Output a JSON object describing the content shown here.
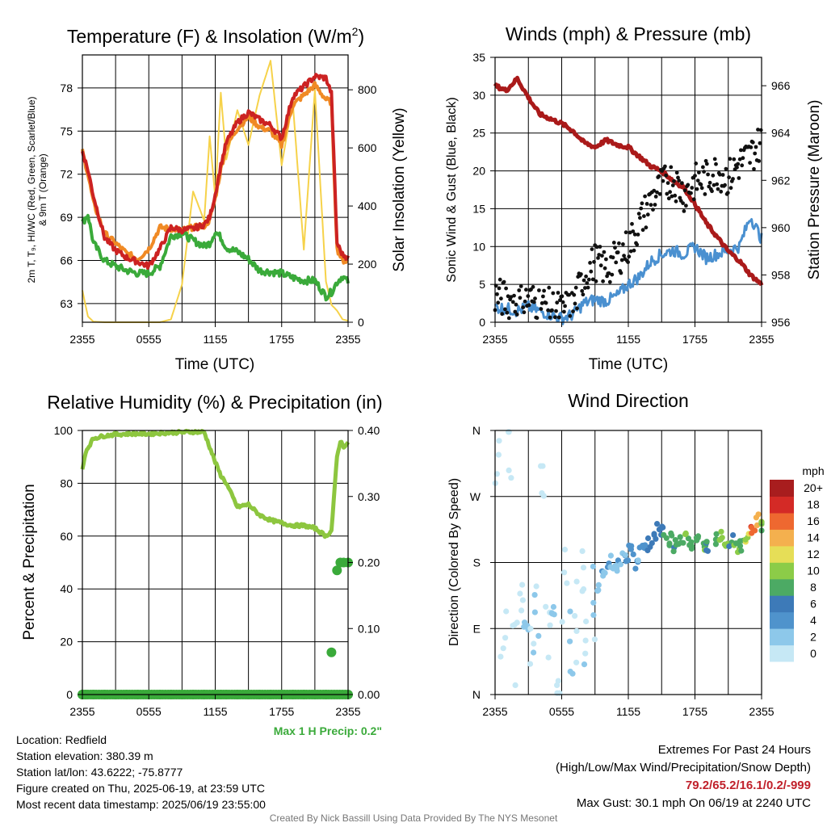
{
  "chart_data": [
    {
      "id": "temperature",
      "type": "line",
      "title": "Temperature (F) & Insolation (W/m²)",
      "title_main": "Temperature (F) & Insolation (W/m",
      "title_sup": "2",
      "title_end": ")",
      "xlabel": "Time (UTC)",
      "ylabel_left_line1": "2m T, T₉, HI/WC (Red, Green, Scarlet/Blue)",
      "ylabel_left_line2": "& 9m T (Orange)",
      "ylabel_right": "Solar Insolation (Yellow)",
      "x_ticks": [
        "2355",
        "0555",
        "1155",
        "1755",
        "2355"
      ],
      "ylim_left": [
        61.7,
        80.3
      ],
      "yticks_left": [
        63,
        66,
        69,
        72,
        75,
        78
      ],
      "ylim_right": [
        0,
        920
      ],
      "yticks_right": [
        0,
        200,
        400,
        600,
        800
      ],
      "grid": true,
      "x_hours": [
        0,
        0.5,
        1,
        2,
        3,
        4,
        5,
        6,
        7,
        8,
        9,
        10,
        11,
        11.5,
        12,
        12.5,
        13,
        14,
        15,
        16,
        17,
        18,
        19,
        20,
        21,
        22,
        22.5,
        23,
        23.5,
        24
      ],
      "series": [
        {
          "key": "temp_2m",
          "color": "#cc2222",
          "axis": "left",
          "values": [
            73.6,
            72.3,
            70.5,
            67.6,
            66.7,
            66.2,
            65.9,
            65.6,
            66.8,
            68.3,
            68.1,
            68.2,
            68.5,
            69.0,
            70.6,
            72.6,
            74.2,
            75.6,
            76.3,
            75.8,
            75.4,
            74.5,
            77.4,
            78.1,
            78.8,
            78.7,
            77.6,
            67.2,
            66.4,
            66.2
          ]
        },
        {
          "key": "dewpoint",
          "color": "#3aaa3a",
          "axis": "left",
          "values": [
            68.6,
            69.2,
            67.2,
            66.0,
            65.6,
            65.3,
            65.1,
            65.1,
            65.6,
            67.7,
            67.9,
            67.4,
            67.0,
            67.2,
            68.0,
            67.6,
            66.9,
            66.6,
            66.1,
            65.3,
            65.2,
            65.1,
            64.8,
            64.6,
            64.6,
            63.5,
            63.8,
            64.5,
            64.9,
            64.5
          ]
        },
        {
          "key": "temp_9m",
          "color": "#f08a25",
          "axis": "left",
          "values": [
            73.6,
            72.0,
            70.0,
            67.9,
            67.2,
            66.5,
            66.1,
            66.8,
            68.3,
            68.2,
            68.1,
            68.3,
            68.4,
            68.8,
            70.3,
            72.3,
            73.9,
            75.2,
            76.0,
            75.3,
            75.0,
            74.0,
            76.8,
            77.5,
            78.2,
            77.2,
            77.0,
            66.8,
            66.0,
            65.9
          ]
        },
        {
          "key": "insolation",
          "color": "#f6d24a",
          "axis": "right",
          "values": [
            110,
            20,
            2,
            0,
            0,
            0,
            0,
            0,
            0,
            10,
            130,
            450,
            350,
            640,
            430,
            790,
            560,
            730,
            610,
            780,
            900,
            540,
            760,
            250,
            800,
            140,
            60,
            40,
            10,
            5
          ]
        }
      ]
    },
    {
      "id": "winds",
      "type": "scatter",
      "title": "Winds (mph) & Pressure (mb)",
      "xlabel": "Time (UTC)",
      "ylabel_left": "Sonic Wind & Gust (Blue, Black)",
      "ylabel_right": "Station Pressure (Maroon)",
      "x_ticks": [
        "2355",
        "0555",
        "1155",
        "1755",
        "2355"
      ],
      "ylim_left": [
        0,
        35
      ],
      "yticks_left": [
        0,
        5,
        10,
        15,
        20,
        25,
        30,
        35
      ],
      "ylim_right": [
        956,
        967.2
      ],
      "yticks_right": [
        956,
        958,
        960,
        962,
        964,
        966
      ],
      "grid": true,
      "x_hours": [
        0,
        1,
        2,
        3,
        4,
        5,
        6,
        7,
        8,
        9,
        10,
        11,
        12,
        13,
        14,
        15,
        16,
        17,
        18,
        19,
        20,
        21,
        22,
        23,
        24
      ],
      "series": [
        {
          "key": "wind",
          "color": "#4a90d0",
          "axis": "left",
          "values": [
            2,
            1.8,
            1.5,
            2,
            1.5,
            1,
            0.5,
            1,
            2.5,
            3,
            2.8,
            3.5,
            5,
            6,
            8,
            9,
            9.5,
            9,
            10,
            8.5,
            9,
            9.5,
            10,
            14,
            11
          ]
        },
        {
          "key": "gust",
          "color": "#111111",
          "axis": "left",
          "values": [
            3.5,
            3,
            2.5,
            3,
            2.5,
            2,
            1.5,
            2,
            6,
            8,
            7,
            8.5,
            10,
            13,
            16,
            18,
            19,
            17,
            18.5,
            19,
            20,
            19,
            21,
            22,
            24
          ]
        },
        {
          "key": "pressure",
          "color": "#aa1a1a",
          "axis": "right",
          "values": [
            966,
            965.8,
            966.3,
            965.5,
            964.8,
            964.6,
            964.4,
            964.1,
            963.6,
            963.4,
            963.7,
            963.5,
            963.4,
            963.0,
            962.6,
            962.4,
            962.0,
            961.7,
            961.0,
            960.2,
            959.6,
            959.0,
            958.6,
            958.0,
            957.6
          ]
        }
      ]
    },
    {
      "id": "humidity",
      "type": "line",
      "title": "Relative Humidity (%) & Precipitation (in)",
      "ylabel": "Percent & Precipitation",
      "x_ticks": [
        "2355",
        "0555",
        "1155",
        "1755",
        "2355"
      ],
      "ylim_left": [
        0,
        100
      ],
      "yticks_left": [
        0,
        20,
        40,
        60,
        80,
        100
      ],
      "ylim_right": [
        0,
        0.4
      ],
      "yticks_right": [
        "0.00",
        "0.10",
        "0.20",
        "0.30",
        "0.40"
      ],
      "grid": true,
      "x_hours": [
        0,
        0.3,
        1,
        2,
        3,
        4,
        5,
        6,
        7,
        8,
        9,
        10,
        11,
        12,
        12.5,
        13,
        14,
        15,
        16,
        17,
        18,
        19,
        20,
        21,
        22,
        22.5,
        23,
        23.3,
        23.6,
        24
      ],
      "series": [
        {
          "key": "rh",
          "color": "#8dc63f",
          "axis": "left",
          "values": [
            85,
            92,
            97,
            98,
            98.5,
            98.7,
            98.8,
            98.7,
            99,
            99.2,
            99.3,
            99.5,
            99.4,
            88,
            83,
            80,
            71,
            72,
            68,
            66,
            65,
            64,
            64,
            63,
            60,
            62,
            90,
            96,
            94,
            95
          ]
        },
        {
          "key": "precip",
          "color": "#3aaa3a",
          "axis": "right",
          "marker": "dot",
          "values": [
            0,
            0,
            0,
            0,
            0,
            0,
            0,
            0,
            0,
            0,
            0,
            0,
            0,
            0,
            0,
            0,
            0,
            0,
            0,
            0,
            0,
            0,
            0,
            0,
            0,
            0.064,
            0.188,
            0.2,
            0.2,
            0.2
          ]
        }
      ],
      "max_precip_label": "Max 1 H Precip: 0.2\""
    },
    {
      "id": "direction",
      "type": "scatter",
      "title": "Wind Direction",
      "ylabel": "Direction (Colored By Speed)",
      "x_ticks": [
        "2355",
        "0555",
        "1155",
        "1755",
        "2355"
      ],
      "y_ticks": [
        "N",
        "E",
        "S",
        "W",
        "N"
      ],
      "ylim": [
        0,
        360
      ],
      "grid": true,
      "colorbar_label": "mph",
      "colorbar_levels": [
        "0",
        "2",
        "4",
        "6",
        "8",
        "10",
        "12",
        "14",
        "16",
        "18",
        "20+"
      ],
      "colorbar_colors": [
        "#c6e8f5",
        "#8dc8ea",
        "#4f93cc",
        "#3d7ab8",
        "#4caa64",
        "#8ccc48",
        "#e6de57",
        "#f4b04e",
        "#ee6830",
        "#d42a26",
        "#a81d1e"
      ],
      "x_hours": [
        0,
        0.5,
        1,
        1.5,
        2,
        2.5,
        3,
        3.5,
        4,
        4.5,
        5,
        5.5,
        6,
        6.5,
        7,
        7.5,
        8,
        8.5,
        9,
        9.5,
        10,
        10.5,
        11,
        11.5,
        12,
        12.5,
        13,
        13.5,
        14,
        14.5,
        15,
        15.5,
        16,
        16.5,
        17,
        17.5,
        18,
        18.5,
        19,
        19.5,
        20,
        20.5,
        21,
        21.5,
        22,
        22.5,
        23,
        23.5,
        24
      ],
      "directions": [
        320,
        110,
        330,
        60,
        150,
        90,
        40,
        130,
        300,
        70,
        110,
        20,
        140,
        60,
        100,
        170,
        90,
        120,
        150,
        160,
        180,
        175,
        185,
        190,
        195,
        180,
        200,
        205,
        215,
        225,
        220,
        210,
        205,
        215,
        210,
        205,
        210,
        200,
        205,
        210,
        215,
        205,
        210,
        200,
        205,
        215,
        225,
        240,
        230
      ],
      "speeds": [
        1,
        0.5,
        0.5,
        0.5,
        1,
        3,
        2,
        2,
        1,
        1,
        3,
        0.5,
        1,
        2,
        1,
        1,
        2,
        2,
        3,
        4,
        4,
        3,
        4,
        4,
        5,
        4,
        5,
        6,
        7,
        7,
        8,
        9,
        8,
        9,
        10,
        9,
        9,
        10,
        8,
        9,
        10,
        11,
        8,
        10,
        9,
        12,
        18,
        15,
        10
      ]
    }
  ],
  "info": {
    "location": "Location: Redfield",
    "elevation": "Station elevation: 380.39 m",
    "latlon": "Station lat/lon: 43.6222; -75.8777",
    "created": "Figure created on Thu, 2025-06-19, at 23:59 UTC",
    "recent": "Most recent data timestamp: 2025/06/19 23:55:00"
  },
  "extremes": {
    "title": "Extremes For Past 24 Hours",
    "subtitle": "(High/Low/Max Wind/Precipitation/Snow Depth)",
    "values": "79.2/65.2/16.1/0.2/-999",
    "values_color": "#c0202a",
    "max_gust": "Max Gust: 30.1 mph On 06/19 at 2240 UTC"
  },
  "credit": "Created By Nick Bassill Using Data Provided By The NYS Mesonet"
}
